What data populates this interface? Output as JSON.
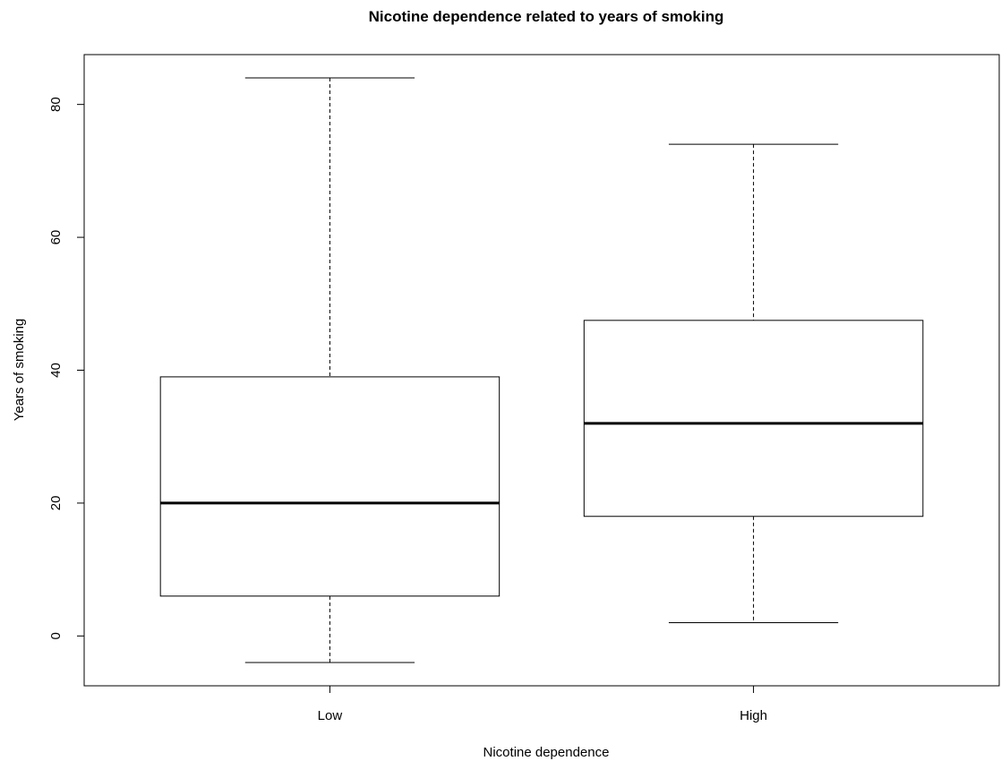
{
  "chart_data": {
    "type": "boxplot",
    "title": "Nicotine dependence related to years of smoking",
    "xlabel": "Nicotine dependence",
    "ylabel": "Years of smoking",
    "ylim": [
      -7.5,
      87.5
    ],
    "yticks": [
      0,
      20,
      40,
      60,
      80
    ],
    "categories": [
      "Low",
      "High"
    ],
    "boxes": [
      {
        "category": "Low",
        "whisker_low": -4,
        "q1": 6,
        "median": 20,
        "q3": 39,
        "whisker_high": 84
      },
      {
        "category": "High",
        "whisker_low": 2,
        "q1": 18,
        "median": 32,
        "q3": 47.5,
        "whisker_high": 74
      }
    ],
    "grid": false,
    "legend": "none"
  }
}
